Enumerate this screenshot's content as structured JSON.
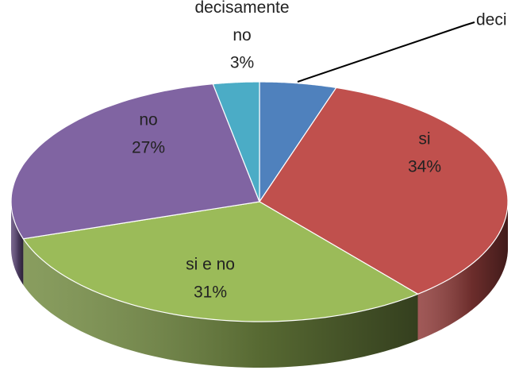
{
  "chart_data": {
    "type": "pie3d",
    "categories": [
      "deci",
      "si",
      "si e no",
      "no",
      "decisamente no"
    ],
    "values": [
      5,
      34,
      31,
      27,
      3
    ],
    "value_labels": [
      null,
      "34%",
      "31%",
      "27%",
      "3%"
    ],
    "colors": [
      "#4f81bd",
      "#c0504d",
      "#9bbb59",
      "#8064a2",
      "#4bacc6"
    ]
  }
}
